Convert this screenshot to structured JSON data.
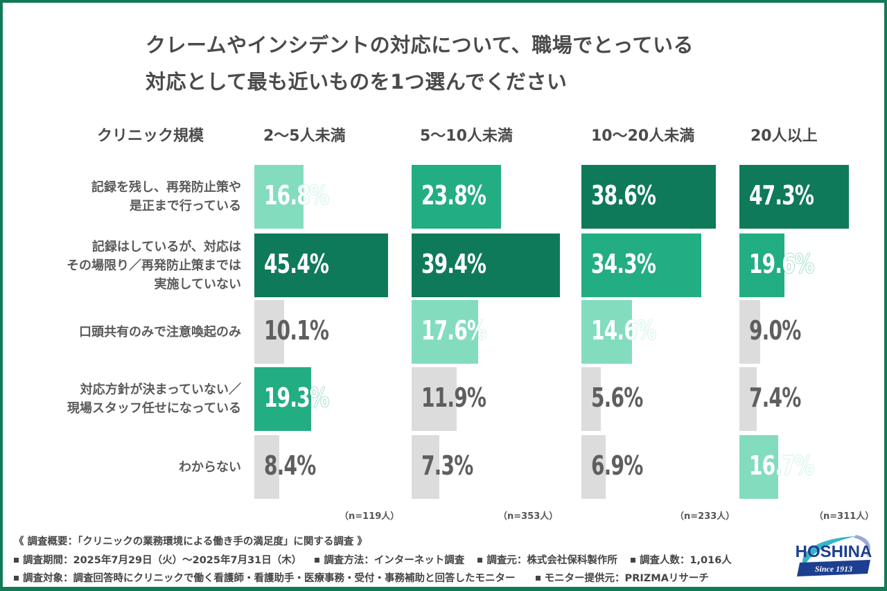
{
  "title": {
    "line1": "クレームやインシデントの対応について、職場でとっている",
    "line2": "対応として最も近いものを1つ選んでください"
  },
  "colors": {
    "frame": "#127a57",
    "top": "#0f7a5a",
    "second": "#23ad82",
    "third": "#84dcbf",
    "other": "#dcdcdc",
    "text_grey": "#5f5f5f"
  },
  "chart_data": {
    "type": "bar",
    "orientation": "horizontal",
    "title": "クレームやインシデントの対応について、職場でとっている対応として最も近いものを1つ選んでください",
    "row_header": "クリニック規模",
    "categories": [
      "記録を残し、再発防止策や是正まで行っている",
      "記録はしているが、対応はその場限り／再発防止策までは実施していない",
      "口頭共有のみで注意喚起のみ",
      "対応方針が決まっていない／現場スタッフ任せになっている",
      "わからない"
    ],
    "category_lines": [
      [
        "記録を残し、再発防止策や",
        "是正まで行っている"
      ],
      [
        "記録はしているが、対応は",
        "その場限り／再発防止策までは",
        "実施していない"
      ],
      [
        "口頭共有のみで注意喚起のみ"
      ],
      [
        "対応方針が決まっていない／",
        "現場スタッフ任せになっている"
      ],
      [
        "わからない"
      ]
    ],
    "unit": "%",
    "series": [
      {
        "name": "2〜5人未満",
        "n_label": "（n=119人）",
        "values": [
          16.8,
          45.4,
          10.1,
          19.3,
          8.4
        ],
        "labels": [
          "16.8%",
          "45.4%",
          "10.1%",
          "19.3%",
          "8.4%"
        ],
        "ranks": [
          3,
          1,
          0,
          2,
          0
        ]
      },
      {
        "name": "5〜10人未満",
        "n_label": "（n=353人）",
        "values": [
          23.8,
          39.4,
          17.6,
          11.9,
          7.3
        ],
        "labels": [
          "23.8%",
          "39.4%",
          "17.6%",
          "11.9%",
          "7.3%"
        ],
        "ranks": [
          2,
          1,
          3,
          0,
          0
        ]
      },
      {
        "name": "10〜20人未満",
        "n_label": "（n=233人）",
        "values": [
          38.6,
          34.3,
          14.6,
          5.6,
          6.9
        ],
        "labels": [
          "38.6%",
          "34.3%",
          "14.6%",
          "5.6%",
          "6.9%"
        ],
        "ranks": [
          1,
          2,
          3,
          0,
          0
        ]
      },
      {
        "name": "20人以上",
        "n_label": "（n=311人）",
        "values": [
          47.3,
          19.6,
          9.0,
          7.4,
          16.7
        ],
        "labels": [
          "47.3%",
          "19.6%",
          "9.0%",
          "7.4%",
          "16.7%"
        ],
        "ranks": [
          1,
          2,
          0,
          0,
          3
        ]
      }
    ],
    "legend": "none",
    "grid": false
  },
  "footer": {
    "heading": "《 調査概要：「クリニックの業務環境による働き手の満足度」に関する調査 》",
    "line2": [
      "調査期間：2025年7月29日（火）〜2025年7月31日（木）",
      "調査方法：インターネット調査",
      "調査元：株式会社保科製作所",
      "調査人数：1,016人"
    ],
    "line3": [
      "調査対象：調査回答時にクリニックで働く看護師・看護助手・医療事務・受付・事務補助と回答したモニター",
      "モニター提供元：PRIZMAリサーチ"
    ]
  },
  "logo": {
    "name": "HOSHINA",
    "tagline": "Since 1913"
  }
}
